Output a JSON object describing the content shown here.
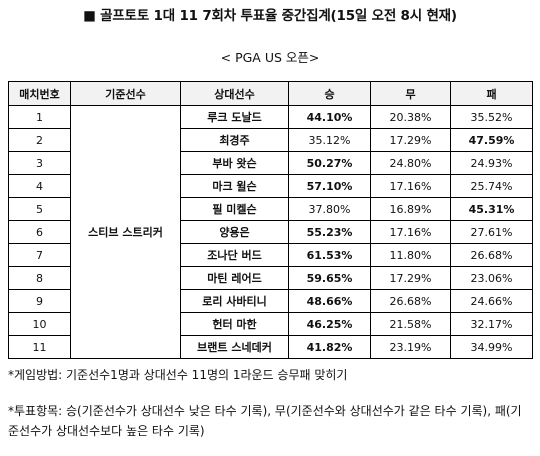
{
  "header": {
    "title": "■ 골프토토 1대 11 7회차 투표율 중간집계(15일 오전 8시 현재)",
    "subtitle": "< PGA US 오픈>"
  },
  "table": {
    "columns": [
      "매치번호",
      "기준선수",
      "상대선수",
      "승",
      "무",
      "패"
    ],
    "base_player": "스티브 스트리커",
    "rows": [
      {
        "no": "1",
        "opponent": "루크 도날드",
        "win": "44.10%",
        "draw": "20.38%",
        "lose": "35.52%",
        "bold": "win"
      },
      {
        "no": "2",
        "opponent": "최경주",
        "win": "35.12%",
        "draw": "17.29%",
        "lose": "47.59%",
        "bold": "lose"
      },
      {
        "no": "3",
        "opponent": "부바 왓슨",
        "win": "50.27%",
        "draw": "24.80%",
        "lose": "24.93%",
        "bold": "win"
      },
      {
        "no": "4",
        "opponent": "마크 윌슨",
        "win": "57.10%",
        "draw": "17.16%",
        "lose": "25.74%",
        "bold": "win"
      },
      {
        "no": "5",
        "opponent": "필 미켈슨",
        "win": "37.80%",
        "draw": "16.89%",
        "lose": "45.31%",
        "bold": "lose"
      },
      {
        "no": "6",
        "opponent": "양용은",
        "win": "55.23%",
        "draw": "17.16%",
        "lose": "27.61%",
        "bold": "win"
      },
      {
        "no": "7",
        "opponent": "조나단 버드",
        "win": "61.53%",
        "draw": "11.80%",
        "lose": "26.68%",
        "bold": "win"
      },
      {
        "no": "8",
        "opponent": "마틴 레어드",
        "win": "59.65%",
        "draw": "17.29%",
        "lose": "23.06%",
        "bold": "win"
      },
      {
        "no": "9",
        "opponent": "로리 사바티니",
        "win": "48.66%",
        "draw": "26.68%",
        "lose": "24.66%",
        "bold": "win"
      },
      {
        "no": "10",
        "opponent": "헌터 마한",
        "win": "46.25%",
        "draw": "21.58%",
        "lose": "32.17%",
        "bold": "win"
      },
      {
        "no": "11",
        "opponent": "브랜트 스네데커",
        "win": "41.82%",
        "draw": "23.19%",
        "lose": "34.99%",
        "bold": "win"
      }
    ]
  },
  "notes": {
    "game_method": "*게임방법: 기준선수1명과 상대선수 11명의 1라운드 승무패 맞히기",
    "vote_items": "*투표항목: 승(기준선수가 상대선수 낮은 타수 기록), 무(기준선수와 상대선수가 같은 타수 기록), 패(기준선수가 상대선수보다 높은 타수 기록)"
  }
}
